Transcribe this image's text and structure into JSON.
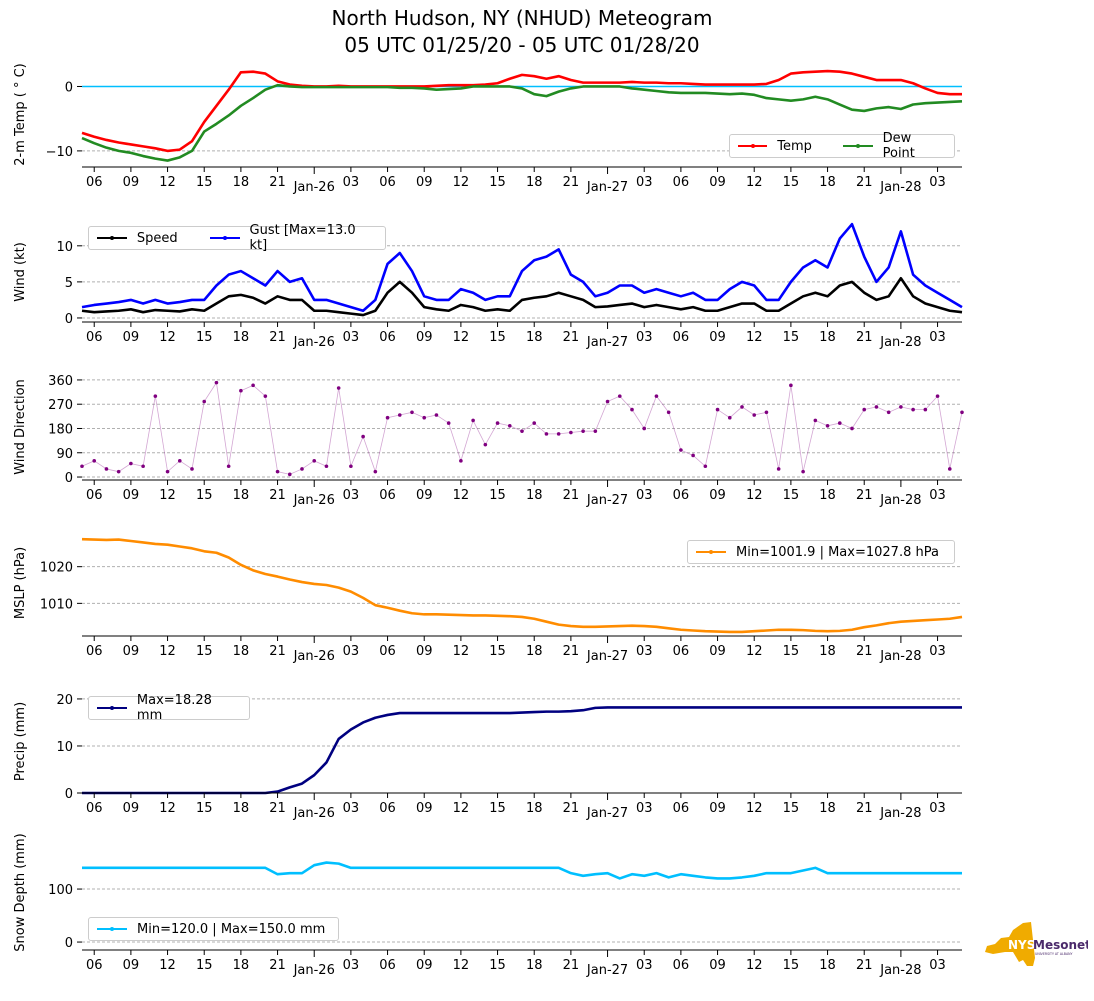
{
  "title": {
    "line1": "North Hudson, NY (NHUD) Meteogram",
    "line2": "05 UTC 01/25/20 - 05 UTC 01/28/20"
  },
  "x_axis": {
    "start_hour_utc": 5,
    "hours": 72,
    "tick_labels": [
      "06",
      "09",
      "12",
      "15",
      "18",
      "21",
      "Jan-26",
      "03",
      "06",
      "09",
      "12",
      "15",
      "18",
      "21",
      "Jan-27",
      "03",
      "06",
      "09",
      "12",
      "15",
      "18",
      "21",
      "Jan-28",
      "03"
    ]
  },
  "logo": {
    "text1": "NYS",
    "text2": "Mesonet",
    "text3": "UNIVERSITY AT ALBANY"
  },
  "colors": {
    "temp": "#ff0000",
    "dew": "#228b22",
    "freeze": "#00bfff",
    "speed": "#000000",
    "gust": "#0000ff",
    "dir": "#800080",
    "mslp": "#ff8c00",
    "precip": "#000080",
    "snow": "#00bfff"
  },
  "legends": {
    "temp": [
      "Temp",
      "Dew Point"
    ],
    "wind": [
      "Speed",
      "Gust [Max=13.0 kt]"
    ],
    "mslp": [
      "Min=1001.9 | Max=1027.8 hPa"
    ],
    "precip": [
      "Max=18.28 mm"
    ],
    "snow": [
      "Min=120.0 | Max=150.0 mm"
    ]
  },
  "chart_data": [
    {
      "id": "temp",
      "type": "line",
      "ylabel": "2-m Temp ($^\\circ$C)",
      "ylabel_text": "2-m Temp ( ° C)",
      "ylim": [
        -12.5,
        3.8
      ],
      "yticks": [
        0,
        -10
      ],
      "ytick_labels": [
        "0",
        "−10"
      ],
      "series": [
        {
          "name": "Temp",
          "color": "#ff0000",
          "values": [
            -7.2,
            -7.8,
            -8.3,
            -8.7,
            -9.0,
            -9.3,
            -9.6,
            -10.0,
            -9.8,
            -8.5,
            -5.5,
            -3.0,
            -0.5,
            2.2,
            2.3,
            2.0,
            0.8,
            0.3,
            0.1,
            0.0,
            0.0,
            0.1,
            0.0,
            0.0,
            0.0,
            0.0,
            0.0,
            0.0,
            0.0,
            0.1,
            0.2,
            0.2,
            0.2,
            0.3,
            0.5,
            1.2,
            1.8,
            1.6,
            1.2,
            1.6,
            1.0,
            0.6,
            0.6,
            0.6,
            0.6,
            0.7,
            0.6,
            0.6,
            0.5,
            0.5,
            0.4,
            0.3,
            0.3,
            0.3,
            0.3,
            0.3,
            0.4,
            1.0,
            2.0,
            2.2,
            2.3,
            2.4,
            2.3,
            2.0,
            1.5,
            1.0,
            1.0,
            1.0,
            0.5,
            -0.3,
            -1.0,
            -1.2,
            -1.2
          ]
        },
        {
          "name": "Dew Point",
          "color": "#228b22",
          "values": [
            -8.0,
            -8.8,
            -9.5,
            -10.0,
            -10.3,
            -10.8,
            -11.2,
            -11.5,
            -11.0,
            -10.0,
            -7.0,
            -5.8,
            -4.5,
            -3.0,
            -1.8,
            -0.5,
            0.2,
            0.0,
            -0.1,
            -0.1,
            -0.1,
            -0.1,
            -0.1,
            -0.1,
            -0.1,
            -0.1,
            -0.2,
            -0.2,
            -0.3,
            -0.5,
            -0.4,
            -0.3,
            0.0,
            0.0,
            0.0,
            0.0,
            -0.3,
            -1.2,
            -1.5,
            -0.8,
            -0.3,
            0.0,
            0.0,
            0.0,
            0.0,
            -0.3,
            -0.5,
            -0.7,
            -0.9,
            -1.0,
            -1.0,
            -1.0,
            -1.1,
            -1.2,
            -1.1,
            -1.3,
            -1.8,
            -2.0,
            -2.2,
            -2.0,
            -1.6,
            -2.0,
            -2.8,
            -3.6,
            -3.8,
            -3.4,
            -3.2,
            -3.5,
            -2.8,
            -2.6,
            -2.5,
            -2.4,
            -2.3
          ]
        }
      ]
    },
    {
      "id": "wind",
      "type": "line",
      "ylabel_text": "Wind (kt)",
      "ylim": [
        -0.56,
        13.3
      ],
      "yticks": [
        0,
        5,
        10
      ],
      "ytick_labels": [
        "0",
        "5",
        "10"
      ],
      "series": [
        {
          "name": "Speed",
          "color": "#000000",
          "values": [
            1.0,
            0.8,
            0.9,
            1.0,
            1.2,
            0.8,
            1.1,
            1.0,
            0.9,
            1.2,
            1.0,
            2.0,
            3.0,
            3.2,
            2.8,
            2.0,
            3.0,
            2.5,
            2.5,
            1.0,
            1.0,
            0.8,
            0.6,
            0.4,
            1.0,
            3.5,
            5.0,
            3.5,
            1.5,
            1.2,
            1.0,
            1.8,
            1.5,
            1.0,
            1.2,
            1.0,
            2.5,
            2.8,
            3.0,
            3.5,
            3.0,
            2.5,
            1.5,
            1.6,
            1.8,
            2.0,
            1.5,
            1.8,
            1.5,
            1.2,
            1.5,
            1.0,
            1.0,
            1.5,
            2.0,
            2.0,
            1.0,
            1.0,
            2.0,
            3.0,
            3.5,
            3.0,
            4.5,
            5.0,
            3.5,
            2.5,
            3.0,
            5.5,
            3.0,
            2.0,
            1.5,
            1.0,
            0.8
          ]
        },
        {
          "name": "Gust",
          "color": "#0000ff",
          "values": [
            1.5,
            1.8,
            2.0,
            2.2,
            2.5,
            2.0,
            2.5,
            2.0,
            2.2,
            2.5,
            2.5,
            4.5,
            6.0,
            6.5,
            5.5,
            4.5,
            6.5,
            5.0,
            5.5,
            2.5,
            2.5,
            2.0,
            1.5,
            1.0,
            2.5,
            7.5,
            9.0,
            6.5,
            3.0,
            2.5,
            2.5,
            4.0,
            3.5,
            2.5,
            3.0,
            3.0,
            6.5,
            8.0,
            8.5,
            9.5,
            6.0,
            5.0,
            3.0,
            3.5,
            4.5,
            4.5,
            3.5,
            4.0,
            3.5,
            3.0,
            3.5,
            2.5,
            2.5,
            4.0,
            5.0,
            4.5,
            2.5,
            2.5,
            5.0,
            7.0,
            8.0,
            7.0,
            11.0,
            13.0,
            8.5,
            5.0,
            7.0,
            12.0,
            6.0,
            4.5,
            3.5,
            2.5,
            1.5
          ]
        }
      ]
    },
    {
      "id": "dir",
      "type": "scatter",
      "ylabel_text": "Wind Direction",
      "ylim": [
        -11,
        382
      ],
      "yticks": [
        0,
        90,
        180,
        270,
        360
      ],
      "ytick_labels": [
        "0",
        "90",
        "180",
        "270",
        "360"
      ],
      "series": [
        {
          "name": "Direction",
          "color": "#800080",
          "values": [
            40,
            60,
            30,
            20,
            50,
            40,
            300,
            20,
            60,
            30,
            280,
            350,
            40,
            320,
            340,
            300,
            20,
            10,
            30,
            60,
            40,
            330,
            40,
            150,
            20,
            220,
            230,
            240,
            220,
            230,
            200,
            60,
            210,
            120,
            200,
            190,
            170,
            200,
            160,
            160,
            165,
            170,
            170,
            280,
            300,
            250,
            180,
            300,
            240,
            100,
            80,
            40,
            250,
            220,
            260,
            230,
            240,
            30,
            340,
            20,
            210,
            190,
            200,
            180,
            250,
            260,
            240,
            260,
            250,
            250,
            300,
            30,
            240
          ]
        }
      ]
    },
    {
      "id": "mslp",
      "type": "line",
      "ylabel_text": "MSLP (hPa)",
      "ylim": [
        1001.1,
        1030
      ],
      "yticks": [
        1010,
        1020
      ],
      "ytick_labels": [
        "1010",
        "1020"
      ],
      "series": [
        {
          "name": "MSLP",
          "color": "#ff8c00",
          "values": [
            1027.5,
            1027.4,
            1027.3,
            1027.4,
            1027.0,
            1026.6,
            1026.2,
            1026.0,
            1025.5,
            1025.0,
            1024.2,
            1023.8,
            1022.5,
            1020.5,
            1019.0,
            1018.0,
            1017.3,
            1016.5,
            1015.8,
            1015.3,
            1015.0,
            1014.3,
            1013.2,
            1011.5,
            1009.5,
            1008.8,
            1008.0,
            1007.3,
            1007.0,
            1007.0,
            1006.9,
            1006.8,
            1006.7,
            1006.7,
            1006.6,
            1006.5,
            1006.3,
            1005.8,
            1005.0,
            1004.2,
            1003.8,
            1003.6,
            1003.6,
            1003.7,
            1003.8,
            1003.9,
            1003.8,
            1003.6,
            1003.2,
            1002.8,
            1002.6,
            1002.4,
            1002.3,
            1002.2,
            1002.2,
            1002.4,
            1002.6,
            1002.8,
            1002.8,
            1002.7,
            1002.5,
            1002.4,
            1002.5,
            1002.8,
            1003.5,
            1004.0,
            1004.6,
            1005.0,
            1005.2,
            1005.4,
            1005.6,
            1005.8,
            1006.3
          ]
        }
      ]
    },
    {
      "id": "precip",
      "type": "line",
      "ylabel_text": "Precip (mm)",
      "ylim": [
        0,
        21.9
      ],
      "yticks": [
        0,
        10,
        20
      ],
      "ytick_labels": [
        "0",
        "10",
        "20"
      ],
      "series": [
        {
          "name": "Precip",
          "color": "#000080",
          "values": [
            0,
            0,
            0,
            0,
            0,
            0,
            0,
            0,
            0,
            0,
            0,
            0,
            0,
            0,
            0,
            0,
            0.3,
            1.2,
            2.0,
            3.8,
            6.5,
            11.5,
            13.5,
            15.0,
            16.0,
            16.6,
            17.0,
            17.0,
            17.0,
            17.0,
            17.0,
            17.0,
            17.0,
            17.0,
            17.0,
            17.0,
            17.1,
            17.2,
            17.3,
            17.3,
            17.4,
            17.6,
            18.1,
            18.2,
            18.2,
            18.2,
            18.2,
            18.2,
            18.2,
            18.2,
            18.2,
            18.2,
            18.2,
            18.2,
            18.2,
            18.2,
            18.2,
            18.2,
            18.2,
            18.2,
            18.2,
            18.2,
            18.2,
            18.2,
            18.2,
            18.2,
            18.2,
            18.2,
            18.2,
            18.2,
            18.2,
            18.2,
            18.2
          ]
        }
      ]
    },
    {
      "id": "snow",
      "type": "line",
      "ylabel_text": "Snow Depth (mm)",
      "ylim": [
        -15,
        202
      ],
      "yticks": [
        0,
        100
      ],
      "ytick_labels": [
        "0",
        "100"
      ],
      "series": [
        {
          "name": "Snow Depth",
          "color": "#00bfff",
          "values": [
            140,
            140,
            140,
            140,
            140,
            140,
            140,
            140,
            140,
            140,
            140,
            140,
            140,
            140,
            140,
            140,
            128,
            130,
            130,
            145,
            150,
            148,
            140,
            140,
            140,
            140,
            140,
            140,
            140,
            140,
            140,
            140,
            140,
            140,
            140,
            140,
            140,
            140,
            140,
            140,
            130,
            125,
            128,
            130,
            120,
            128,
            125,
            130,
            122,
            128,
            125,
            122,
            120,
            120,
            122,
            125,
            130,
            130,
            130,
            135,
            140,
            130,
            130,
            130,
            130,
            130,
            130,
            130,
            130,
            130,
            130,
            130,
            130
          ]
        }
      ]
    }
  ]
}
